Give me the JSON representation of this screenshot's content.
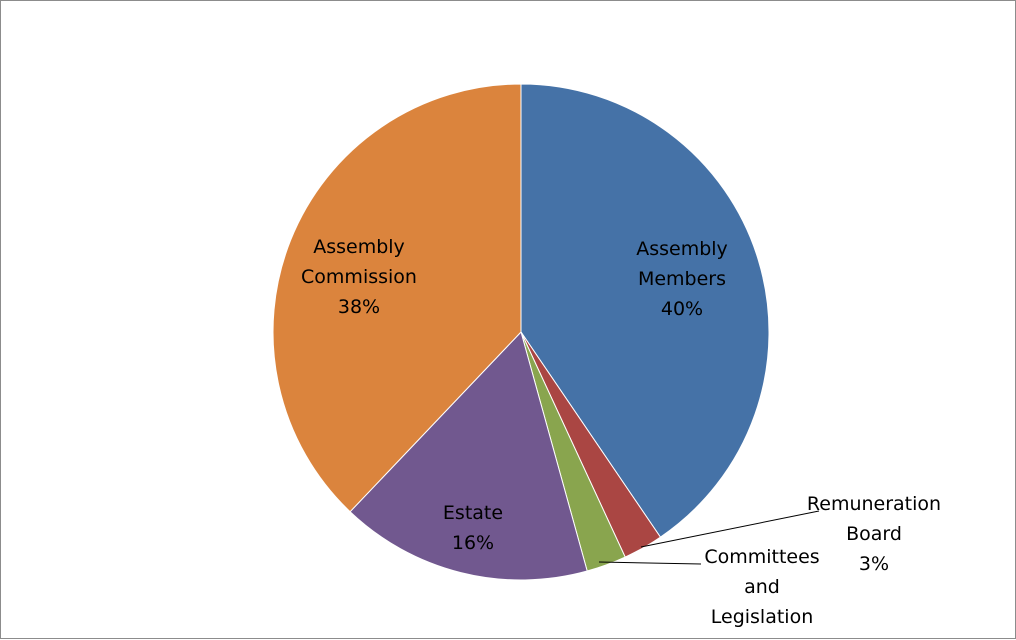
{
  "chart_data": {
    "type": "pie",
    "start": "12 o'clock, clockwise",
    "slices": [
      {
        "key": "members",
        "label_lines": [
          "Assembly",
          "Members",
          "40%"
        ],
        "value": 40.5,
        "color": "#4572A7"
      },
      {
        "key": "remuneration",
        "label_lines": [
          "Remuneration",
          "Board",
          "3%"
        ],
        "value": 2.6,
        "color": "#AA4643"
      },
      {
        "key": "committees",
        "label_lines": [
          "Committees",
          "and",
          "Legislation"
        ],
        "value": 2.6,
        "color": "#89A54E"
      },
      {
        "key": "estate",
        "label_lines": [
          "Estate",
          "16%"
        ],
        "value": 16.4,
        "color": "#71588F"
      },
      {
        "key": "commission",
        "label_lines": [
          "Assembly",
          "Commission",
          "38%"
        ],
        "value": 37.9,
        "color": "#DB843D"
      }
    ]
  }
}
